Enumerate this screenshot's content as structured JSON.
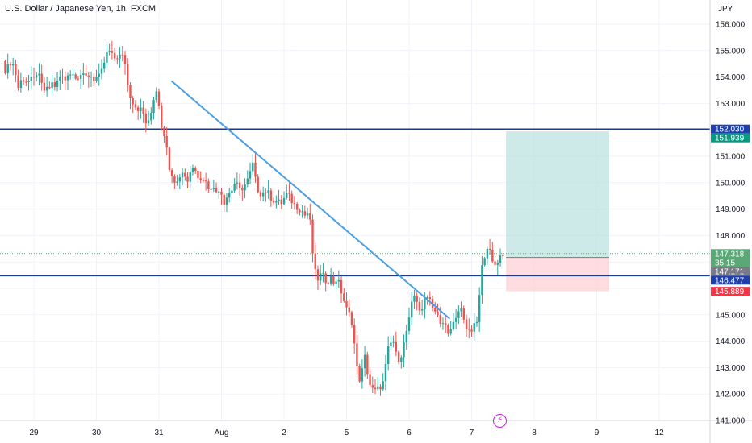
{
  "title": "U.S. Dollar / Japanese Yen, 1h, FXCM",
  "currency": "JPY",
  "icons": {
    "events": "lightning-icon"
  },
  "colors": {
    "up": "#26a69a",
    "down": "#ef5350",
    "trendline": "#4a9ee2",
    "hline": "#1e3a8a",
    "target_zone": "#b2dfdb",
    "stop_zone": "#ffcdd2"
  },
  "chart_data": {
    "type": "candlestick",
    "x_ticks": [
      {
        "label": "29",
        "day": 0
      },
      {
        "label": "30",
        "day": 1
      },
      {
        "label": "31",
        "day": 2
      },
      {
        "label": "Aug",
        "day": 3
      },
      {
        "label": "2",
        "day": 4
      },
      {
        "label": "5",
        "day": 5
      },
      {
        "label": "6",
        "day": 6
      },
      {
        "label": "7",
        "day": 7
      },
      {
        "label": "8",
        "day": 8
      },
      {
        "label": "9",
        "day": 9
      },
      {
        "label": "12",
        "day": 10
      }
    ],
    "y_ticks": [
      "156.000",
      "155.000",
      "154.000",
      "153.000",
      "151.000",
      "150.000",
      "149.000",
      "148.000",
      "145.000",
      "144.000",
      "143.000",
      "142.000",
      "141.000"
    ],
    "ylim": [
      140.5,
      156.4
    ],
    "close_path": [
      [
        -0.5,
        154.6
      ],
      [
        -0.45,
        154.2
      ],
      [
        -0.4,
        154.5
      ],
      [
        -0.35,
        154.6
      ],
      [
        -0.3,
        154.2
      ],
      [
        -0.25,
        153.6
      ],
      [
        -0.2,
        153.9
      ],
      [
        -0.15,
        153.9
      ],
      [
        -0.1,
        153.8
      ],
      [
        -0.05,
        153.9
      ],
      [
        0.0,
        153.9
      ],
      [
        0.05,
        154.2
      ],
      [
        0.1,
        153.9
      ],
      [
        0.15,
        153.5
      ],
      [
        0.2,
        153.5
      ],
      [
        0.25,
        153.6
      ],
      [
        0.3,
        153.8
      ],
      [
        0.35,
        153.6
      ],
      [
        0.4,
        154.0
      ],
      [
        0.45,
        154.0
      ],
      [
        0.5,
        153.9
      ],
      [
        0.55,
        154.2
      ],
      [
        0.6,
        154.1
      ],
      [
        0.65,
        154.1
      ],
      [
        0.7,
        154.0
      ],
      [
        0.75,
        154.1
      ],
      [
        0.8,
        154.0
      ],
      [
        0.85,
        154.0
      ],
      [
        0.9,
        154.1
      ],
      [
        0.95,
        153.9
      ],
      [
        1.0,
        154.0
      ],
      [
        1.05,
        154.0
      ],
      [
        1.1,
        154.3
      ],
      [
        1.15,
        154.8
      ],
      [
        1.2,
        155.0
      ],
      [
        1.25,
        154.8
      ],
      [
        1.3,
        154.7
      ],
      [
        1.35,
        154.8
      ],
      [
        1.4,
        154.8
      ],
      [
        1.45,
        154.7
      ],
      [
        1.5,
        153.7
      ],
      [
        1.55,
        153.2
      ],
      [
        1.6,
        153.0
      ],
      [
        1.65,
        152.8
      ],
      [
        1.7,
        152.8
      ],
      [
        1.75,
        152.6
      ],
      [
        1.8,
        152.2
      ],
      [
        1.85,
        152.3
      ],
      [
        1.9,
        153.0
      ],
      [
        1.95,
        153.6
      ],
      [
        2.0,
        153.0
      ],
      [
        2.05,
        152.0
      ],
      [
        2.1,
        151.8
      ],
      [
        2.15,
        150.7
      ],
      [
        2.2,
        150.4
      ],
      [
        2.25,
        150.1
      ],
      [
        2.3,
        150.0
      ],
      [
        2.35,
        150.4
      ],
      [
        2.4,
        150.4
      ],
      [
        2.45,
        150.0
      ],
      [
        2.5,
        150.4
      ],
      [
        2.55,
        150.7
      ],
      [
        2.6,
        150.5
      ],
      [
        2.65,
        150.0
      ],
      [
        2.7,
        150.2
      ],
      [
        2.75,
        150.0
      ],
      [
        2.8,
        149.8
      ],
      [
        2.85,
        149.9
      ],
      [
        2.9,
        149.6
      ],
      [
        2.95,
        149.8
      ],
      [
        3.0,
        149.6
      ],
      [
        3.05,
        149.2
      ],
      [
        3.1,
        149.6
      ],
      [
        3.15,
        149.6
      ],
      [
        3.2,
        150.0
      ],
      [
        3.25,
        149.9
      ],
      [
        3.3,
        149.7
      ],
      [
        3.4,
        150.0
      ],
      [
        3.45,
        150.3
      ],
      [
        3.5,
        150.7
      ],
      [
        3.55,
        150.0
      ],
      [
        3.6,
        149.6
      ],
      [
        3.65,
        149.6
      ],
      [
        3.7,
        149.7
      ],
      [
        3.75,
        149.6
      ],
      [
        3.8,
        149.4
      ],
      [
        3.85,
        149.3
      ],
      [
        3.9,
        149.3
      ],
      [
        3.95,
        149.2
      ],
      [
        4.0,
        149.4
      ],
      [
        4.05,
        149.6
      ],
      [
        4.1,
        149.4
      ],
      [
        4.15,
        149.2
      ],
      [
        4.2,
        149.1
      ],
      [
        4.25,
        149.0
      ],
      [
        4.3,
        148.9
      ],
      [
        4.35,
        148.7
      ],
      [
        4.4,
        149.0
      ],
      [
        4.45,
        147.5
      ],
      [
        4.5,
        146.6
      ],
      [
        4.55,
        146.3
      ],
      [
        4.6,
        146.6
      ],
      [
        4.65,
        146.3
      ],
      [
        4.7,
        146.3
      ],
      [
        4.75,
        146.4
      ],
      [
        4.8,
        146.2
      ],
      [
        4.85,
        146.4
      ],
      [
        4.9,
        146.0
      ],
      [
        4.95,
        145.6
      ],
      [
        5.0,
        145.2
      ],
      [
        5.05,
        145.0
      ],
      [
        5.1,
        144.6
      ],
      [
        5.15,
        143.2
      ],
      [
        5.2,
        142.5
      ],
      [
        5.25,
        142.9
      ],
      [
        5.3,
        143.5
      ],
      [
        5.35,
        142.5
      ],
      [
        5.4,
        142.2
      ],
      [
        5.45,
        142.1
      ],
      [
        5.5,
        142.2
      ],
      [
        5.55,
        142.3
      ],
      [
        5.6,
        142.5
      ],
      [
        5.65,
        143.6
      ],
      [
        5.7,
        143.9
      ],
      [
        5.75,
        144.0
      ],
      [
        5.8,
        143.4
      ],
      [
        5.85,
        143.3
      ],
      [
        5.9,
        143.7
      ],
      [
        5.95,
        144.3
      ],
      [
        6.0,
        144.8
      ],
      [
        6.05,
        145.5
      ],
      [
        6.1,
        145.8
      ],
      [
        6.15,
        145.3
      ],
      [
        6.2,
        145.0
      ],
      [
        6.25,
        145.6
      ],
      [
        6.3,
        145.8
      ],
      [
        6.35,
        145.5
      ],
      [
        6.4,
        145.2
      ],
      [
        6.45,
        145.0
      ],
      [
        6.5,
        144.6
      ],
      [
        6.55,
        144.7
      ],
      [
        6.6,
        144.5
      ],
      [
        6.65,
        144.3
      ],
      [
        6.7,
        144.6
      ],
      [
        6.75,
        144.8
      ],
      [
        6.8,
        145.2
      ],
      [
        6.85,
        145.2
      ],
      [
        6.9,
        144.6
      ],
      [
        6.95,
        144.3
      ],
      [
        7.0,
        144.4
      ],
      [
        7.05,
        144.6
      ],
      [
        7.1,
        144.8
      ],
      [
        7.15,
        146.6
      ],
      [
        7.2,
        147.2
      ],
      [
        7.25,
        147.6
      ],
      [
        7.3,
        147.3
      ],
      [
        7.35,
        146.8
      ],
      [
        7.4,
        147.0
      ],
      [
        7.45,
        147.2
      ],
      [
        7.5,
        147.3
      ]
    ],
    "trendline": {
      "start": [
        2.2,
        153.85
      ],
      "end": [
        6.65,
        144.85
      ]
    },
    "horizontal_levels": [
      152.03,
      146.477
    ],
    "position": {
      "day_start": 7.55,
      "day_end": 9.2,
      "entry": 147.171,
      "target": 151.939,
      "stop": 145.889
    },
    "price_tags": [
      {
        "name": "resistance-level-tag",
        "label": "152.030",
        "price": 152.03,
        "color": "#1e40af"
      },
      {
        "name": "target-price-tag",
        "label": "151.939",
        "price": 151.939,
        "color": "#089981"
      },
      {
        "name": "last-price-tag",
        "label": "147.318",
        "price": 147.318,
        "color": "#5ba877",
        "countdown": "35:15"
      },
      {
        "name": "entry-price-tag",
        "label": "147.171",
        "price": 147.171,
        "color": "#787b86"
      },
      {
        "name": "support-level-tag",
        "label": "146.477",
        "price": 146.477,
        "color": "#1e40af"
      },
      {
        "name": "stop-price-tag",
        "label": "145.889",
        "price": 145.889,
        "color": "#f23645"
      }
    ]
  }
}
